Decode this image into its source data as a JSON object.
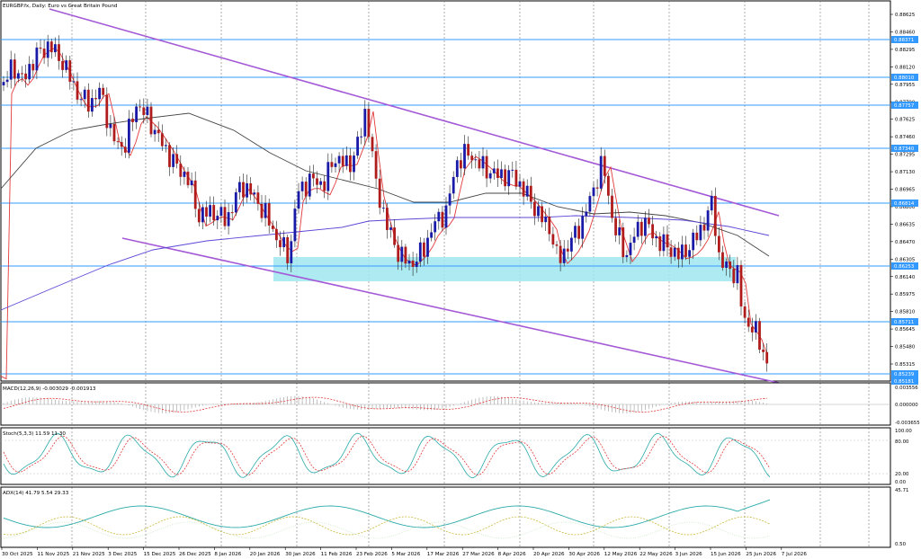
{
  "window": {
    "title": "EURGBP.fx, Daily:  Euro vs Great Britain Pound"
  },
  "price_axis": {
    "ticks": [
      "0.88625",
      "0.88460",
      "0.88295",
      "0.88120",
      "0.87955",
      "0.87790",
      "0.87625",
      "0.87460",
      "0.87295",
      "0.87130",
      "0.86965",
      "0.86800",
      "0.86635",
      "0.86470",
      "0.86305",
      "0.86140",
      "0.85975",
      "0.85810",
      "0.85645",
      "0.85480",
      "0.85315"
    ],
    "level_tags": [
      "0.88371",
      "0.88010",
      "0.87757",
      "0.87340",
      "0.86814",
      "0.86253",
      "0.85711",
      "0.85239",
      "0.85181"
    ]
  },
  "date_axis": {
    "labels": [
      "30 Oct 2025",
      "11 Nov 2025",
      "21 Nov 2025",
      "3 Dec 2025",
      "15 Dec 2025",
      "26 Dec 2025",
      "8 Jan 2026",
      "20 Jan 2026",
      "30 Jan 2026",
      "11 Feb 2026",
      "23 Feb 2026",
      "5 Mar 2026",
      "17 Mar 2026",
      "27 Mar 2026",
      "8 Apr 2026",
      "20 Apr 2026",
      "30 Apr 2026",
      "12 May 2026",
      "22 May 2026",
      "3 Jun 2026",
      "15 Jun 2026",
      "25 Jun 2026",
      "7 Jul 2026"
    ]
  },
  "indicators": {
    "macd": {
      "label": "MACD(12,26,9) -0.003029 -0.001913",
      "ticks": [
        "0.003556",
        "0.000000",
        "-0.003655"
      ]
    },
    "stoch": {
      "label": "Stoch(5,3,3) 11.59 11.30",
      "ticks": [
        "100.00",
        "80.00",
        "20.00",
        "0.00"
      ]
    },
    "adx": {
      "label": "ADX(14) 41.79 5.54 29.33",
      "ticks": [
        "45.71",
        "0.50"
      ]
    }
  },
  "colors": {
    "bull_candle": "#1a1aa8",
    "bear_candle": "#b01c1c",
    "level_line": "#3399ff",
    "channel": "#a45ad6",
    "zone": "#9fe6ee",
    "ma_fast": "#e23a3a",
    "ma_mid": "#444444",
    "ma_slow": "#5b47d6"
  }
}
